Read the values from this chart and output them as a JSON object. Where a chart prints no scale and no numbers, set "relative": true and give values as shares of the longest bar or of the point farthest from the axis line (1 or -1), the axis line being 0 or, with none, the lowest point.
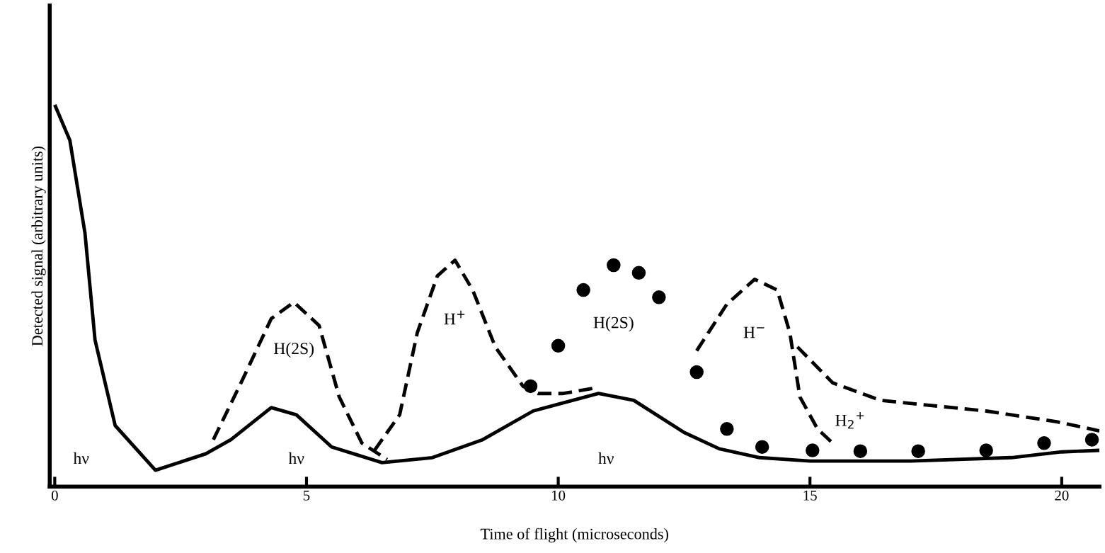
{
  "chart_data": {
    "type": "line",
    "relative": true,
    "xlabel": "Time of flight (microseconds)",
    "ylabel": "Detected signal (arbitrary units)",
    "xlim": [
      -0.1,
      20.75
    ],
    "xticks": [
      0,
      5,
      10,
      15,
      20
    ],
    "tick_labels": "x",
    "grid": false,
    "legend": false,
    "series": [
      {
        "color": "#000000",
        "line_style": "solid",
        "x": [
          0,
          0.3,
          0.6,
          0.8,
          1.2,
          2,
          3,
          3.5,
          4.3,
          4.8,
          5.5,
          6.5,
          7.5,
          8.5,
          9.5,
          10.8,
          11.5,
          12.5,
          13.2,
          14,
          15,
          17,
          19,
          20,
          20.75
        ],
        "values": [
          1.0,
          0.907,
          0.664,
          0.384,
          0.16,
          0.043,
          0.086,
          0.123,
          0.207,
          0.188,
          0.104,
          0.063,
          0.076,
          0.123,
          0.198,
          0.244,
          0.226,
          0.142,
          0.099,
          0.076,
          0.067,
          0.067,
          0.076,
          0.091,
          0.095
        ]
      },
      {
        "name": "H(2S)",
        "color": "#000000",
        "line_style": "dashed",
        "x": [
          3.15,
          3.7,
          4.3,
          4.75,
          5.25,
          5.65,
          6.1,
          6.6
        ],
        "values": [
          0.123,
          0.272,
          0.44,
          0.483,
          0.422,
          0.235,
          0.114,
          0.071
        ]
      },
      {
        "name": "H$^{+}$",
        "color": "#000000",
        "line_style": "dashed",
        "x": [
          6.35,
          6.85,
          7.2,
          7.6,
          7.95,
          8.3,
          8.75,
          9.3,
          9.6,
          10.1,
          10.75
        ],
        "values": [
          0.095,
          0.188,
          0.403,
          0.552,
          0.593,
          0.515,
          0.366,
          0.263,
          0.244,
          0.244,
          0.259
        ]
      },
      {
        "name": "H(2S)",
        "type": "scatter",
        "color": "#000000",
        "marker": "circle",
        "x": [
          9.45,
          10,
          10.5,
          11.1,
          11.6,
          12,
          12.75,
          13.35,
          14.05,
          15.05,
          16,
          17.15,
          18.5,
          19.65,
          20.6
        ],
        "values": [
          0.263,
          0.369,
          0.515,
          0.58,
          0.56,
          0.496,
          0.3,
          0.151,
          0.104,
          0.095,
          0.093,
          0.093,
          0.095,
          0.114,
          0.123
        ]
      },
      {
        "name": "H$^{−}$",
        "color": "#000000",
        "line_style": "dashed",
        "x": [
          12.75,
          13.35,
          13.9,
          14.35,
          14.6,
          14.8,
          15.15,
          15.45
        ],
        "values": [
          0.356,
          0.478,
          0.543,
          0.515,
          0.403,
          0.235,
          0.151,
          0.114
        ]
      },
      {
        "name": "H$_{2}$$^{+}$",
        "color": "#000000",
        "line_style": "dashed",
        "x": [
          14.75,
          15.45,
          16.4,
          18.5,
          19.9,
          20.75
        ],
        "values": [
          0.366,
          0.272,
          0.226,
          0.198,
          0.17,
          0.146
        ]
      }
    ],
    "annotations": [
      "hν",
      "hν",
      "hν"
    ]
  }
}
